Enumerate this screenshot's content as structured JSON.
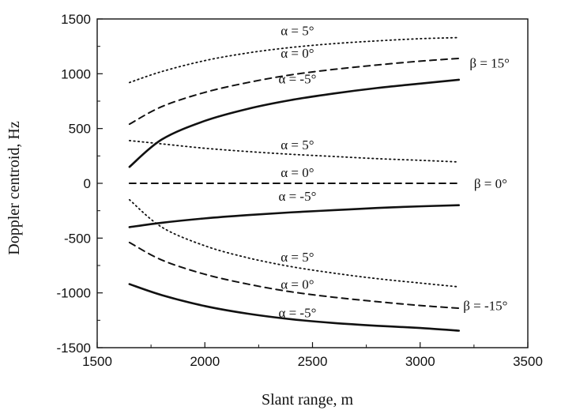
{
  "chart_data": {
    "type": "line",
    "title": "",
    "xlabel": "Slant range, m",
    "ylabel": "Doppler centroid, Hz",
    "xlim": [
      1500,
      3500
    ],
    "ylim": [
      -1500,
      1500
    ],
    "xticks": [
      1500,
      2000,
      2500,
      3000,
      3500
    ],
    "yticks": [
      -1500,
      -1000,
      -500,
      0,
      500,
      1000,
      1500
    ],
    "xtick_labels": [
      "1500",
      "2000",
      "2500",
      "3000",
      "3500"
    ],
    "ytick_labels": [
      "-1500",
      "-1000",
      "-500",
      "0",
      "500",
      "1000",
      "1500"
    ],
    "grid": false,
    "legend": "none",
    "series": [
      {
        "group": "β = 15°",
        "alpha": "α = 5°",
        "style": "dotted",
        "x": [
          1650,
          1800,
          2000,
          2200,
          2400,
          2600,
          2800,
          3000,
          3180
        ],
        "y": [
          920,
          1020,
          1120,
          1190,
          1240,
          1275,
          1300,
          1320,
          1330
        ]
      },
      {
        "group": "β = 15°",
        "alpha": "α = 0°",
        "style": "dashed",
        "x": [
          1650,
          1800,
          2000,
          2200,
          2400,
          2600,
          2800,
          3000,
          3180
        ],
        "y": [
          540,
          700,
          830,
          920,
          990,
          1040,
          1080,
          1115,
          1140
        ]
      },
      {
        "group": "β = 15°",
        "alpha": "α = -5°",
        "style": "solid",
        "x": [
          1650,
          1800,
          2000,
          2200,
          2400,
          2600,
          2800,
          3000,
          3180
        ],
        "y": [
          150,
          400,
          570,
          680,
          760,
          820,
          870,
          910,
          945
        ]
      },
      {
        "group": "β = 0°",
        "alpha": "α = 5°",
        "style": "dotted",
        "x": [
          1650,
          1800,
          2000,
          2200,
          2400,
          2600,
          2800,
          3000,
          3180
        ],
        "y": [
          390,
          360,
          320,
          290,
          265,
          245,
          225,
          210,
          195
        ]
      },
      {
        "group": "β = 0°",
        "alpha": "α = 0°",
        "style": "dashed",
        "x": [
          1650,
          3180
        ],
        "y": [
          0,
          0
        ]
      },
      {
        "group": "β = 0°",
        "alpha": "α = -5°",
        "style": "solid",
        "x": [
          1650,
          1800,
          2000,
          2200,
          2400,
          2600,
          2800,
          3000,
          3180
        ],
        "y": [
          -400,
          -360,
          -320,
          -290,
          -265,
          -245,
          -225,
          -210,
          -200
        ]
      },
      {
        "group": "β = -15°",
        "alpha": "α = 5°",
        "style": "dotted",
        "x": [
          1650,
          1800,
          2000,
          2200,
          2400,
          2600,
          2800,
          3000,
          3180
        ],
        "y": [
          -150,
          -400,
          -570,
          -680,
          -760,
          -820,
          -870,
          -910,
          -945
        ]
      },
      {
        "group": "β = -15°",
        "alpha": "α = 0°",
        "style": "dashed",
        "x": [
          1650,
          1800,
          2000,
          2200,
          2400,
          2600,
          2800,
          3000,
          3180
        ],
        "y": [
          -540,
          -700,
          -830,
          -920,
          -990,
          -1040,
          -1080,
          -1115,
          -1140
        ]
      },
      {
        "group": "β = -15°",
        "alpha": "α = -5°",
        "style": "solid",
        "x": [
          1650,
          1800,
          2000,
          2200,
          2400,
          2600,
          2800,
          3000,
          3180
        ],
        "y": [
          -920,
          -1020,
          -1120,
          -1190,
          -1240,
          -1275,
          -1300,
          -1320,
          -1345
        ]
      }
    ],
    "annotations": [
      {
        "text": "α = 5°",
        "x": 2430,
        "y": 1395
      },
      {
        "text": "α = 0°",
        "x": 2430,
        "y": 1190
      },
      {
        "text": "α = -5°",
        "x": 2430,
        "y": 955
      },
      {
        "text": "β = 15°",
        "x": 3230,
        "y": 1100
      },
      {
        "text": "α = 5°",
        "x": 2430,
        "y": 355
      },
      {
        "text": "α = 0°",
        "x": 2430,
        "y": 100
      },
      {
        "text": "α = -5°",
        "x": 2430,
        "y": -115
      },
      {
        "text": "β = 0°",
        "x": 3250,
        "y": 0
      },
      {
        "text": "α = 5°",
        "x": 2430,
        "y": -670
      },
      {
        "text": "α = 0°",
        "x": 2430,
        "y": -920
      },
      {
        "text": "α = -5°",
        "x": 2430,
        "y": -1180
      },
      {
        "text": "β = -15°",
        "x": 3200,
        "y": -1115
      }
    ]
  }
}
